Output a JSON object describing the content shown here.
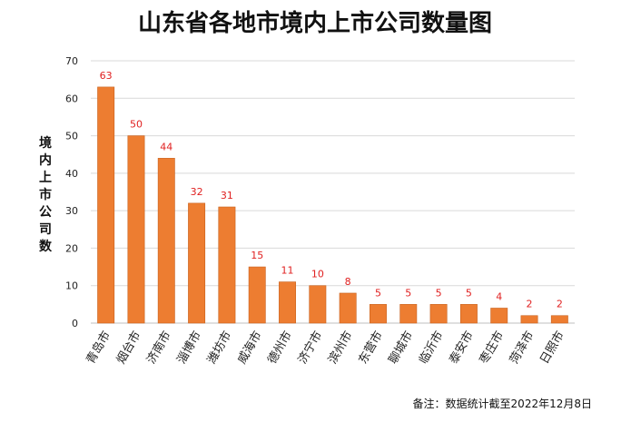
{
  "chart_data": {
    "type": "bar",
    "title": "山东省各地市境内上市公司数量图",
    "ylabel": "境内上市公司数",
    "xlabel": "",
    "ylim": [
      0,
      70
    ],
    "yticks": [
      0,
      10,
      20,
      30,
      40,
      50,
      60,
      70
    ],
    "grid": true,
    "legend": "none",
    "categories": [
      "青岛市",
      "烟台市",
      "济南市",
      "淄博市",
      "潍坊市",
      "威海市",
      "德州市",
      "济宁市",
      "滨州市",
      "东营市",
      "聊城市",
      "临沂市",
      "泰安市",
      "枣庄市",
      "菏泽市",
      "日照市"
    ],
    "values": [
      63,
      50,
      44,
      32,
      31,
      15,
      11,
      10,
      8,
      5,
      5,
      5,
      5,
      4,
      2,
      2
    ],
    "annotation": "备注：数据统计截至2022年12月8日"
  },
  "colors": {
    "bar": "#ED7D31",
    "bar_edge": "#c8621f",
    "label": "#e02020"
  }
}
